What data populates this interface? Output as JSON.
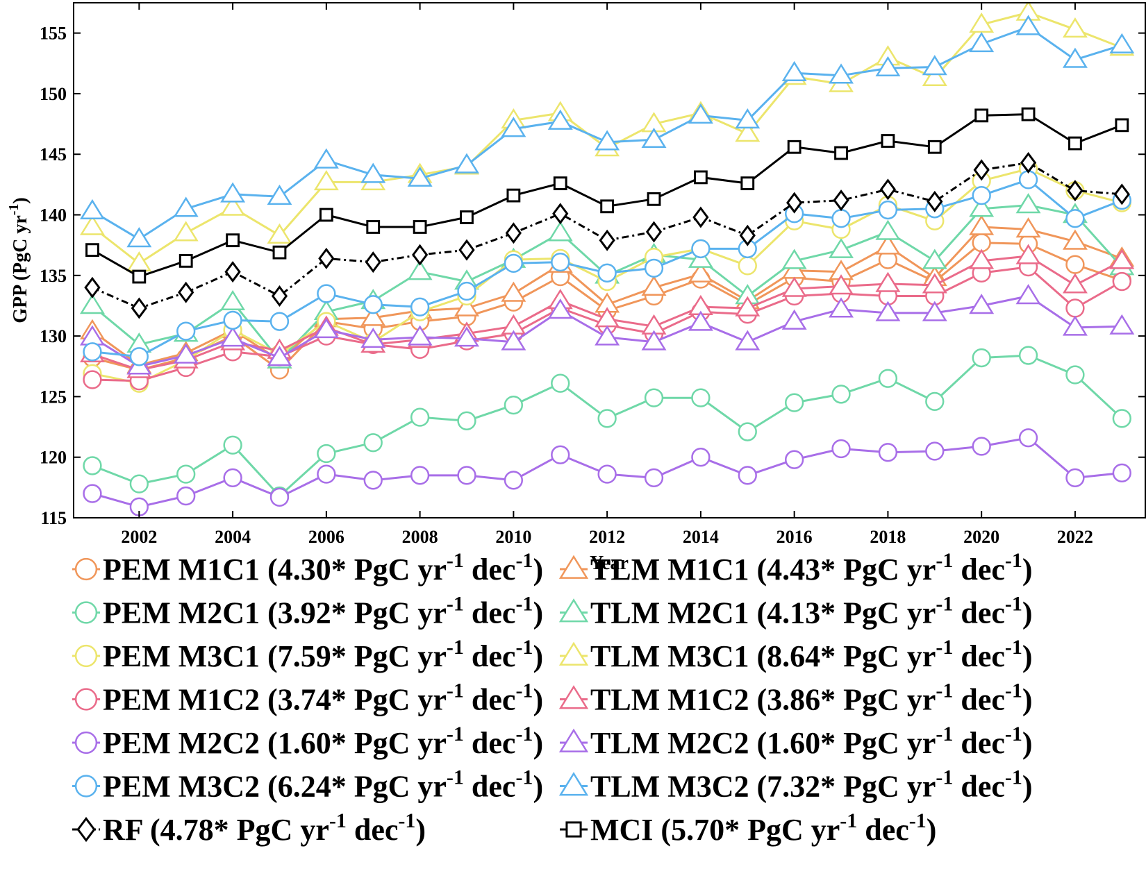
{
  "chart_data": {
    "type": "line",
    "xlabel": "Year",
    "ylabel_main": "GPP (PgC yr",
    "ylabel_sup": "-1",
    "ylabel_tail": ")",
    "xlim": [
      2000.6,
      2023.5
    ],
    "ylim": [
      115,
      157.5
    ],
    "xticks": [
      2002,
      2004,
      2006,
      2008,
      2010,
      2012,
      2014,
      2016,
      2018,
      2020,
      2022
    ],
    "yticks": [
      115,
      120,
      125,
      130,
      135,
      140,
      145,
      150,
      155
    ],
    "x": [
      2001,
      2002,
      2003,
      2004,
      2005,
      2006,
      2007,
      2008,
      2009,
      2010,
      2011,
      2012,
      2013,
      2014,
      2015,
      2016,
      2017,
      2018,
      2019,
      2020,
      2021,
      2022,
      2023
    ],
    "trend_unit": "PgC yr",
    "trend_unit_sup": "-1",
    "trend_unit_tail": " dec",
    "series": [
      {
        "name": "PEM M1C1",
        "trend": "4.30*",
        "color": "#f0965a",
        "marker": "circle",
        "dash": "solid",
        "values": [
          128.2,
          127.2,
          128.2,
          130.0,
          127.2,
          131.2,
          130.6,
          131.2,
          131.6,
          132.8,
          134.9,
          132.1,
          133.3,
          134.7,
          132.6,
          134.8,
          134.5,
          136.3,
          134.5,
          137.7,
          137.6,
          135.9,
          134.6
        ]
      },
      {
        "name": "TLM M1C1",
        "trend": "4.43*",
        "color": "#f0965a",
        "marker": "triangle",
        "dash": "solid",
        "values": [
          130.4,
          127.6,
          128.6,
          130.5,
          128.0,
          131.4,
          131.5,
          132.1,
          132.3,
          133.5,
          135.9,
          132.6,
          134.0,
          135.1,
          132.9,
          135.4,
          135.3,
          137.4,
          134.8,
          139.0,
          138.8,
          137.8,
          136.4
        ]
      },
      {
        "name": "PEM M2C1",
        "trend": "3.92*",
        "color": "#6fd8a8",
        "marker": "circle",
        "dash": "solid",
        "values": [
          119.3,
          117.8,
          118.6,
          121.0,
          116.8,
          120.3,
          121.2,
          123.3,
          123.0,
          124.3,
          126.1,
          123.2,
          124.9,
          124.9,
          122.1,
          124.5,
          125.2,
          126.5,
          124.6,
          128.2,
          128.4,
          126.8,
          123.2
        ]
      },
      {
        "name": "TLM M2C1",
        "trend": "4.13*",
        "color": "#6fd8a8",
        "marker": "triangle",
        "dash": "solid",
        "values": [
          132.5,
          129.3,
          130.2,
          132.8,
          128.0,
          132.0,
          132.9,
          135.3,
          134.5,
          136.3,
          138.5,
          135.0,
          136.7,
          136.3,
          133.3,
          136.2,
          137.1,
          138.6,
          136.2,
          140.5,
          140.8,
          140.0,
          135.7
        ]
      },
      {
        "name": "PEM M3C1",
        "trend": "7.59*",
        "color": "#ece56c",
        "marker": "circle",
        "dash": "solid",
        "values": [
          126.9,
          126.1,
          128.0,
          130.5,
          128.5,
          131.2,
          129.5,
          132.0,
          133.3,
          136.3,
          136.4,
          134.5,
          136.5,
          137.2,
          135.8,
          139.5,
          138.8,
          140.8,
          139.5,
          142.8,
          143.8,
          142.0,
          141.0
        ]
      },
      {
        "name": "TLM M3C1",
        "trend": "8.64*",
        "color": "#ece56c",
        "marker": "triangle",
        "dash": "solid",
        "values": [
          139.0,
          136.0,
          138.5,
          140.6,
          138.3,
          142.7,
          142.7,
          143.3,
          144.0,
          147.8,
          148.4,
          145.5,
          147.5,
          148.4,
          146.7,
          151.4,
          150.8,
          153.0,
          151.3,
          155.7,
          156.7,
          155.3,
          153.8
        ]
      },
      {
        "name": "PEM M1C2",
        "trend": "3.74*",
        "color": "#ea6b8a",
        "marker": "circle",
        "dash": "solid",
        "values": [
          126.4,
          126.3,
          127.4,
          128.7,
          128.3,
          130.0,
          129.3,
          128.9,
          129.6,
          130.2,
          132.3,
          130.9,
          130.2,
          132.0,
          131.8,
          133.3,
          133.5,
          133.3,
          133.3,
          135.2,
          135.7,
          132.3,
          134.5
        ]
      },
      {
        "name": "TLM M1C2",
        "trend": "3.86*",
        "color": "#ea6b8a",
        "marker": "triangle",
        "dash": "solid",
        "values": [
          128.5,
          127.2,
          128.0,
          129.5,
          128.8,
          130.7,
          129.3,
          129.7,
          130.2,
          130.8,
          132.9,
          131.4,
          130.8,
          132.4,
          132.3,
          133.9,
          134.1,
          134.3,
          134.2,
          136.2,
          136.6,
          134.2,
          136.2
        ]
      },
      {
        "name": "PEM M2C2",
        "trend": "1.60*",
        "color": "#a86ee8",
        "marker": "circle",
        "dash": "solid",
        "values": [
          117.0,
          115.9,
          116.8,
          118.3,
          116.7,
          118.6,
          118.1,
          118.5,
          118.5,
          118.1,
          120.2,
          118.6,
          118.3,
          120.0,
          118.5,
          119.8,
          120.7,
          120.4,
          120.5,
          120.9,
          121.6,
          118.3,
          118.7
        ]
      },
      {
        "name": "TLM M2C2",
        "trend": "1.60*",
        "color": "#a86ee8",
        "marker": "triangle",
        "dash": "solid",
        "values": [
          129.9,
          127.5,
          128.4,
          129.8,
          128.2,
          130.5,
          129.7,
          129.9,
          129.8,
          129.5,
          132.1,
          129.9,
          129.5,
          131.1,
          129.5,
          131.2,
          132.2,
          131.9,
          131.9,
          132.5,
          133.3,
          130.7,
          130.8
        ]
      },
      {
        "name": "PEM M3C2",
        "trend": "6.24*",
        "color": "#5ab2ee",
        "marker": "circle",
        "dash": "solid",
        "values": [
          128.7,
          128.3,
          130.4,
          131.3,
          131.2,
          133.5,
          132.6,
          132.4,
          133.7,
          136.0,
          136.1,
          135.2,
          135.6,
          137.2,
          137.2,
          140.1,
          139.7,
          140.4,
          140.5,
          141.6,
          142.9,
          139.7,
          141.2
        ]
      },
      {
        "name": "TLM M3C2",
        "trend": "7.32*",
        "color": "#5ab2ee",
        "marker": "triangle",
        "dash": "solid",
        "values": [
          140.3,
          138.0,
          140.5,
          141.7,
          141.5,
          144.5,
          143.3,
          143.0,
          144.1,
          147.1,
          147.7,
          146.0,
          146.2,
          148.2,
          147.8,
          151.7,
          151.5,
          152.1,
          152.2,
          154.1,
          155.5,
          152.8,
          154.0
        ]
      },
      {
        "name": "RF",
        "trend": "4.78*",
        "color": "#000000",
        "marker": "diamond",
        "dash": "dashdot",
        "values": [
          134.0,
          132.3,
          133.6,
          135.3,
          133.3,
          136.4,
          136.1,
          136.7,
          137.1,
          138.5,
          140.1,
          137.9,
          138.6,
          139.8,
          138.3,
          141.0,
          141.2,
          142.1,
          141.1,
          143.7,
          144.3,
          142.0,
          141.7
        ]
      },
      {
        "name": "MCI",
        "trend": "5.70*",
        "color": "#000000",
        "marker": "square",
        "dash": "solid",
        "values": [
          137.1,
          134.9,
          136.2,
          137.9,
          136.9,
          140.0,
          139.0,
          139.0,
          139.8,
          141.6,
          142.6,
          140.7,
          141.3,
          143.1,
          142.6,
          145.6,
          145.1,
          146.1,
          145.6,
          148.2,
          148.3,
          145.9,
          147.4
        ]
      }
    ]
  }
}
